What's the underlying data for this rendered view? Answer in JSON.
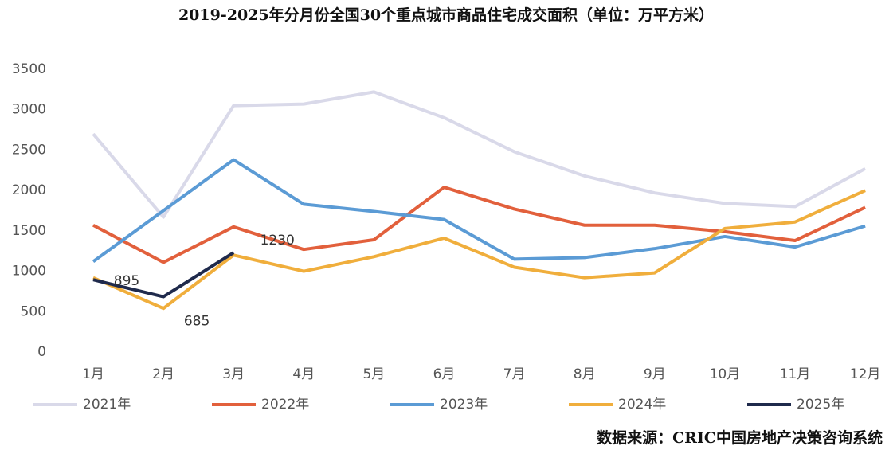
{
  "chart_data": {
    "type": "line",
    "title": "2019-2025年分月份全国30个重点城市商品住宅成交面积（单位：万平方米）",
    "source": "数据来源：CRIC中国房地产决策咨询系统",
    "categories": [
      "1月",
      "2月",
      "3月",
      "4月",
      "5月",
      "6月",
      "7月",
      "8月",
      "9月",
      "10月",
      "11月",
      "12月"
    ],
    "series": [
      {
        "name": "2021年",
        "color": "#d9d9e9",
        "values": [
          2700,
          1670,
          3050,
          3070,
          3220,
          2900,
          2480,
          2180,
          1970,
          1840,
          1800,
          2270
        ]
      },
      {
        "name": "2022年",
        "color": "#e2603c",
        "values": [
          1570,
          1110,
          1550,
          1270,
          1390,
          2040,
          1770,
          1570,
          1570,
          1490,
          1380,
          1790
        ]
      },
      {
        "name": "2023年",
        "color": "#5b9bd5",
        "values": [
          1120,
          1750,
          2380,
          1830,
          1740,
          1640,
          1150,
          1170,
          1280,
          1430,
          1300,
          1560
        ]
      },
      {
        "name": "2024年",
        "color": "#f0ae3c",
        "values": [
          920,
          540,
          1200,
          1000,
          1180,
          1410,
          1050,
          920,
          980,
          1530,
          1610,
          2000
        ]
      },
      {
        "name": "2025年",
        "color": "#1f2a4c",
        "values": [
          895,
          685,
          1230,
          null,
          null,
          null,
          null,
          null,
          null,
          null,
          null,
          null
        ],
        "labeled": true
      }
    ],
    "ylim": [
      0,
      3500
    ],
    "yticks": [
      0,
      500,
      1000,
      1500,
      2000,
      2500,
      3000,
      3500
    ],
    "grid": false
  }
}
